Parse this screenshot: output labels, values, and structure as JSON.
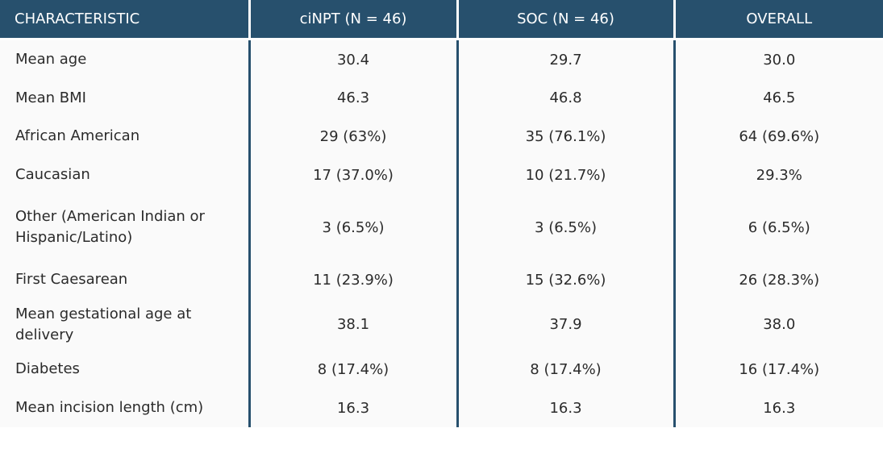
{
  "table": {
    "headers": [
      "CHARACTERISTIC",
      "ciNPT (N = 46)",
      "SOC (N = 46)",
      "OVERALL"
    ],
    "rows": [
      [
        "Mean age",
        "30.4",
        "29.7",
        "30.0"
      ],
      [
        "Mean BMI",
        "46.3",
        "46.8",
        "46.5"
      ],
      [
        "African American",
        "29 (63%)",
        "35 (76.1%)",
        "64 (69.6%)"
      ],
      [
        "Caucasian",
        "17 (37.0%)",
        "10 (21.7%)",
        "29.3%"
      ],
      [
        "Other (American Indian or Hispanic/Latino)",
        "3 (6.5%)",
        "3 (6.5%)",
        "6 (6.5%)"
      ],
      [
        "First Caesarean",
        "11 (23.9%)",
        "15 (32.6%)",
        "26 (28.3%)"
      ],
      [
        "Mean gestational age at delivery",
        "38.1",
        "37.9",
        "38.0"
      ],
      [
        "Diabetes",
        "8 (17.4%)",
        "8 (17.4%)",
        "16 (17.4%)"
      ],
      [
        "Mean incision length (cm)",
        "16.3",
        "16.3",
        "16.3"
      ]
    ]
  },
  "colors": {
    "header_bg": "#27506d",
    "header_text": "#ffffff",
    "divider": "#27506d"
  }
}
